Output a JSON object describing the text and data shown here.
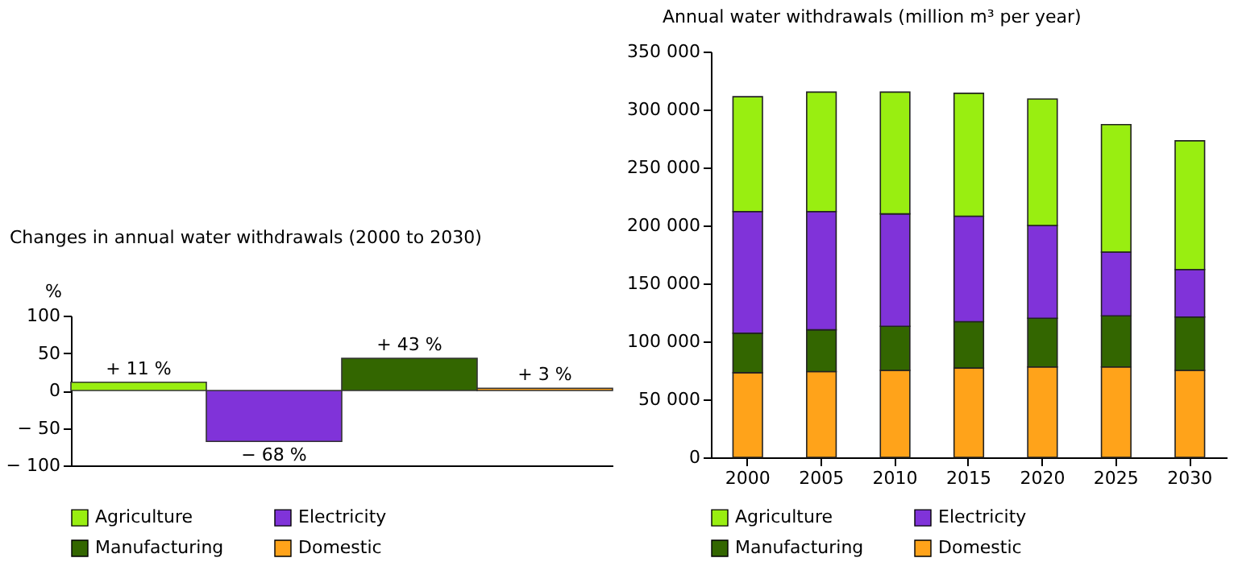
{
  "chart_data": [
    {
      "type": "bar",
      "title": "Changes in annual water withdrawals (2000 to 2030)",
      "ylabel": "%",
      "categories": [
        null,
        null,
        null,
        null
      ],
      "series": [
        {
          "name": "Agriculture",
          "color": "#99ee11",
          "values": [
            11,
            null,
            null,
            null
          ],
          "value_labels": [
            "+ 11 %",
            null,
            null,
            null
          ]
        },
        {
          "name": "Electricity",
          "color": "#8033d9",
          "values": [
            null,
            -68,
            null,
            null
          ],
          "value_labels": [
            null,
            "− 68 %",
            null,
            null
          ]
        },
        {
          "name": "Manufacturing",
          "color": "#336600",
          "values": [
            null,
            null,
            43,
            null
          ],
          "value_labels": [
            null,
            null,
            "+ 43 %",
            null
          ]
        },
        {
          "name": "Domestic",
          "color": "#ffa31a",
          "values": [
            null,
            null,
            null,
            3
          ],
          "value_labels": [
            null,
            null,
            null,
            "+ 3 %"
          ]
        }
      ],
      "ylim": [
        -100,
        100
      ],
      "yticks": [
        {
          "value": -100,
          "label": "− 100"
        },
        {
          "value": -50,
          "label": "− 50"
        },
        0,
        50,
        100
      ],
      "grid": false,
      "legend": "bottom"
    },
    {
      "type": "bar",
      "stacked": true,
      "title": "Annual water withdrawals (million m³ per year)",
      "categories": [
        "2000",
        "2005",
        "2010",
        "2015",
        "2020",
        "2025",
        "2030"
      ],
      "series": [
        {
          "name": "Domestic",
          "color": "#ffa31a",
          "values": [
            73000,
            74000,
            75000,
            77000,
            78000,
            78000,
            75000
          ]
        },
        {
          "name": "Manufacturing",
          "color": "#336600",
          "values": [
            34000,
            36000,
            38000,
            40000,
            42000,
            44000,
            46000
          ]
        },
        {
          "name": "Electricity",
          "color": "#8033d9",
          "values": [
            105000,
            102000,
            97000,
            91000,
            80000,
            55000,
            41000
          ]
        },
        {
          "name": "Agriculture",
          "color": "#99ee11",
          "values": [
            99000,
            103000,
            105000,
            106000,
            109000,
            110000,
            111000
          ]
        }
      ],
      "ylim": [
        0,
        350000
      ],
      "yticks": [
        0,
        {
          "value": 50000,
          "label": "50 000"
        },
        {
          "value": 100000,
          "label": "100 000"
        },
        {
          "value": 150000,
          "label": "150 000"
        },
        {
          "value": 200000,
          "label": "200 000"
        },
        {
          "value": 250000,
          "label": "250 000"
        },
        {
          "value": 300000,
          "label": "300 000"
        },
        {
          "value": 350000,
          "label": "350 000"
        }
      ],
      "grid": false,
      "legend": "bottom"
    }
  ]
}
